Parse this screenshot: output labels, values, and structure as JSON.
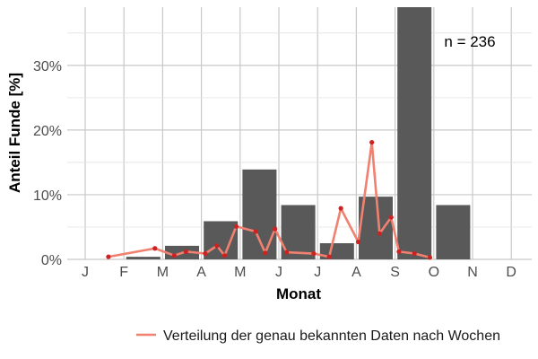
{
  "chart_data": {
    "type": "bar",
    "xlabel": "Monat",
    "ylabel": "Anteil Funde [%]",
    "annotation": "n = 236",
    "categories": [
      "J",
      "F",
      "M",
      "A",
      "M",
      "J",
      "J",
      "A",
      "S",
      "O",
      "N",
      "D"
    ],
    "y_ticks": [
      "0%",
      "10%",
      "20%",
      "30%"
    ],
    "ylim": [
      0,
      39
    ],
    "grid": true,
    "legend_position": "bottom",
    "colors": {
      "bar": "#595959",
      "line": "#f08070",
      "point": "#cc2222",
      "grid": "#c8c8c8"
    },
    "series": [
      {
        "kind": "bar",
        "values": [
          0,
          0.4,
          2.1,
          5.9,
          13.9,
          8.4,
          2.5,
          9.7,
          39.0,
          8.4,
          0,
          0
        ]
      },
      {
        "kind": "line",
        "name": "Verteilung der genau bekannten Daten nach Wochen",
        "x": [
          1.6,
          2.8,
          3.3,
          3.6,
          4.1,
          4.4,
          4.6,
          4.9,
          5.4,
          5.65,
          5.9,
          6.2,
          6.9,
          7.3,
          7.6,
          8.05,
          8.4,
          8.6,
          8.9,
          9.1,
          9.5,
          9.9
        ],
        "values": [
          0.4,
          1.7,
          0.6,
          1.2,
          0.9,
          2.1,
          0.6,
          5.1,
          4.3,
          1.0,
          4.7,
          1.1,
          0.9,
          0.4,
          7.9,
          2.7,
          18.1,
          4.0,
          6.5,
          1.2,
          0.9,
          0.3
        ]
      }
    ]
  }
}
